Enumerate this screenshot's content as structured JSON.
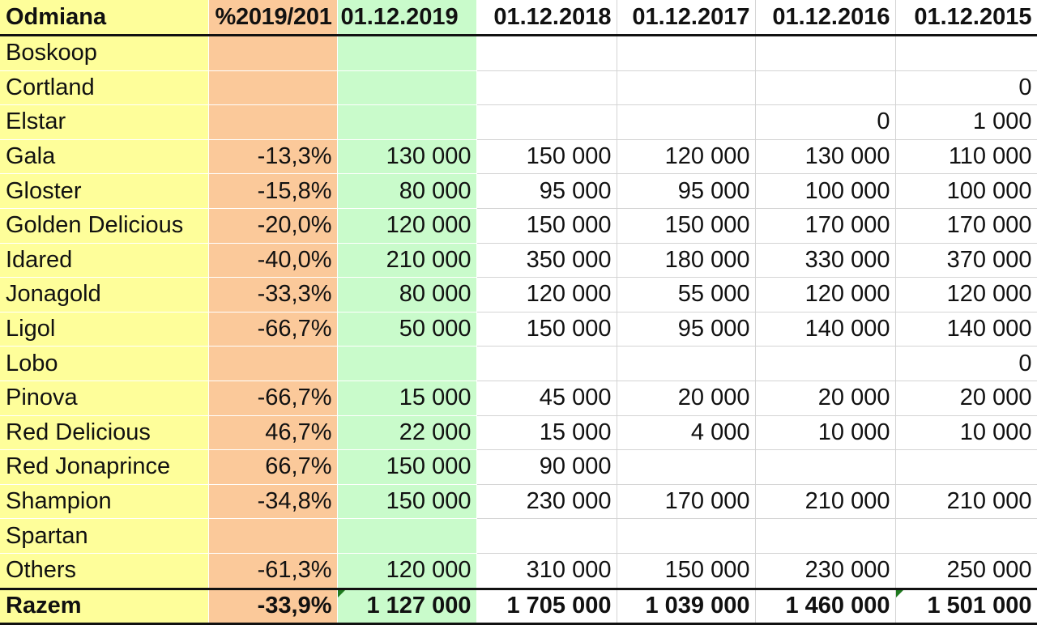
{
  "table": {
    "headers": [
      "Odmiana",
      "%2019/201",
      "01.12.2019",
      "01.12.2018",
      "01.12.2017",
      "01.12.2016",
      "01.12.2015"
    ],
    "rows": [
      {
        "name": "Boskoop",
        "pct": "",
        "y2019": "",
        "y2018": "",
        "y2017": "",
        "y2016": "",
        "y2015": ""
      },
      {
        "name": "Cortland",
        "pct": "",
        "y2019": "",
        "y2018": "",
        "y2017": "",
        "y2016": "",
        "y2015": "0"
      },
      {
        "name": "Elstar",
        "pct": "",
        "y2019": "",
        "y2018": "",
        "y2017": "",
        "y2016": "0",
        "y2015": "1 000"
      },
      {
        "name": "Gala",
        "pct": "-13,3%",
        "y2019": "130 000",
        "y2018": "150 000",
        "y2017": "120 000",
        "y2016": "130 000",
        "y2015": "110 000"
      },
      {
        "name": "Gloster",
        "pct": "-15,8%",
        "y2019": "80 000",
        "y2018": "95 000",
        "y2017": "95 000",
        "y2016": "100 000",
        "y2015": "100 000"
      },
      {
        "name": "Golden Delicious",
        "pct": "-20,0%",
        "y2019": "120 000",
        "y2018": "150 000",
        "y2017": "150 000",
        "y2016": "170 000",
        "y2015": "170 000"
      },
      {
        "name": "Idared",
        "pct": "-40,0%",
        "y2019": "210 000",
        "y2018": "350 000",
        "y2017": "180 000",
        "y2016": "330 000",
        "y2015": "370 000"
      },
      {
        "name": "Jonagold",
        "pct": "-33,3%",
        "y2019": "80 000",
        "y2018": "120 000",
        "y2017": "55 000",
        "y2016": "120 000",
        "y2015": "120 000"
      },
      {
        "name": "Ligol",
        "pct": "-66,7%",
        "y2019": "50 000",
        "y2018": "150 000",
        "y2017": "95 000",
        "y2016": "140 000",
        "y2015": "140 000"
      },
      {
        "name": "Lobo",
        "pct": "",
        "y2019": "",
        "y2018": "",
        "y2017": "",
        "y2016": "",
        "y2015": "0"
      },
      {
        "name": "Pinova",
        "pct": "-66,7%",
        "y2019": "15 000",
        "y2018": "45 000",
        "y2017": "20 000",
        "y2016": "20 000",
        "y2015": "20 000"
      },
      {
        "name": "Red Delicious",
        "pct": "46,7%",
        "y2019": "22 000",
        "y2018": "15 000",
        "y2017": "4 000",
        "y2016": "10 000",
        "y2015": "10 000"
      },
      {
        "name": "Red Jonaprince",
        "pct": "66,7%",
        "y2019": "150 000",
        "y2018": "90 000",
        "y2017": "",
        "y2016": "",
        "y2015": ""
      },
      {
        "name": "Shampion",
        "pct": "-34,8%",
        "y2019": "150 000",
        "y2018": "230 000",
        "y2017": "170 000",
        "y2016": "210 000",
        "y2015": "210 000"
      },
      {
        "name": "Spartan",
        "pct": "",
        "y2019": "",
        "y2018": "",
        "y2017": "",
        "y2016": "",
        "y2015": ""
      },
      {
        "name": "Others",
        "pct": "-61,3%",
        "y2019": "120 000",
        "y2018": "310 000",
        "y2017": "150 000",
        "y2016": "230 000",
        "y2015": "250 000"
      }
    ],
    "total": {
      "name": "Razem",
      "pct": "-33,9%",
      "y2019": "1 127 000",
      "y2018": "1 705 000",
      "y2017": "1 039 000",
      "y2016": "1 460 000",
      "y2015": "1 501 000"
    }
  },
  "colors": {
    "name_column": "#fefe9a",
    "pct_column": "#fbc99a",
    "current_year_column": "#c9fbcb",
    "comment_marker": "#1f7a1f"
  }
}
